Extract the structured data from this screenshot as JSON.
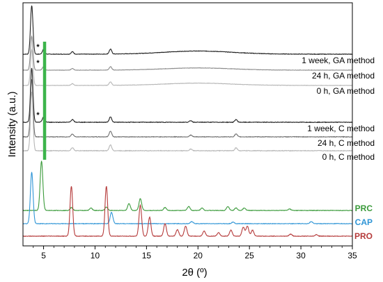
{
  "chart_data": {
    "type": "line",
    "xlabel": "2θ (º)",
    "ylabel": "Intensity (a.u.)",
    "xlim": [
      3,
      35
    ],
    "xticks": [
      "5",
      "10",
      "15",
      "20",
      "25",
      "30",
      "35"
    ],
    "yticks": "none",
    "marker_line": {
      "x": 5.1,
      "color": "#3cb44b"
    },
    "series": [
      {
        "name": "1 week, GA method",
        "color": "#202020",
        "group": "sample",
        "peaks": [
          3.85,
          5.0,
          7.8,
          11.5,
          20.0
        ],
        "star": true
      },
      {
        "name": "24 h, GA method",
        "color": "#8a8a8a",
        "group": "sample",
        "peaks": [
          3.85,
          5.0,
          7.8,
          11.5,
          20.0
        ],
        "star": true
      },
      {
        "name": "0 h, GA method",
        "color": "#b5b5b5",
        "group": "sample",
        "peaks": [
          3.85,
          7.8,
          11.5,
          20.0
        ],
        "star": false
      },
      {
        "name": "1 week, C method",
        "color": "#202020",
        "group": "sample",
        "peaks": [
          3.85,
          5.0,
          7.8,
          11.5,
          19.3,
          23.7
        ],
        "star": true
      },
      {
        "name": "24 h, C method",
        "color": "#6e6e6e",
        "group": "sample",
        "peaks": [
          3.85,
          7.8,
          11.5,
          19.3,
          23.7
        ],
        "star": false
      },
      {
        "name": "0 h, C method",
        "color": "#b5b5b5",
        "group": "sample",
        "peaks": [
          3.85,
          7.8,
          11.5,
          19.3,
          23.7
        ],
        "star": false
      },
      {
        "name": "PRC",
        "color": "#3a9a3a",
        "group": "reference",
        "peaks": [
          4.8,
          7.7,
          9.6,
          11.1,
          13.3,
          14.4,
          16.8,
          19.1,
          20.4,
          22.9,
          23.7,
          24.5,
          28.9
        ]
      },
      {
        "name": "CAP",
        "color": "#2f95d6",
        "group": "reference",
        "peaks": [
          3.85,
          11.6,
          19.4,
          23.4,
          31.0
        ]
      },
      {
        "name": "PRO",
        "color": "#b53a3a",
        "group": "reference",
        "peaks": [
          7.7,
          11.1,
          14.4,
          15.3,
          16.8,
          18.0,
          18.8,
          20.6,
          22.0,
          23.2,
          24.4,
          24.8,
          25.3,
          29.0,
          31.5
        ]
      }
    ]
  }
}
